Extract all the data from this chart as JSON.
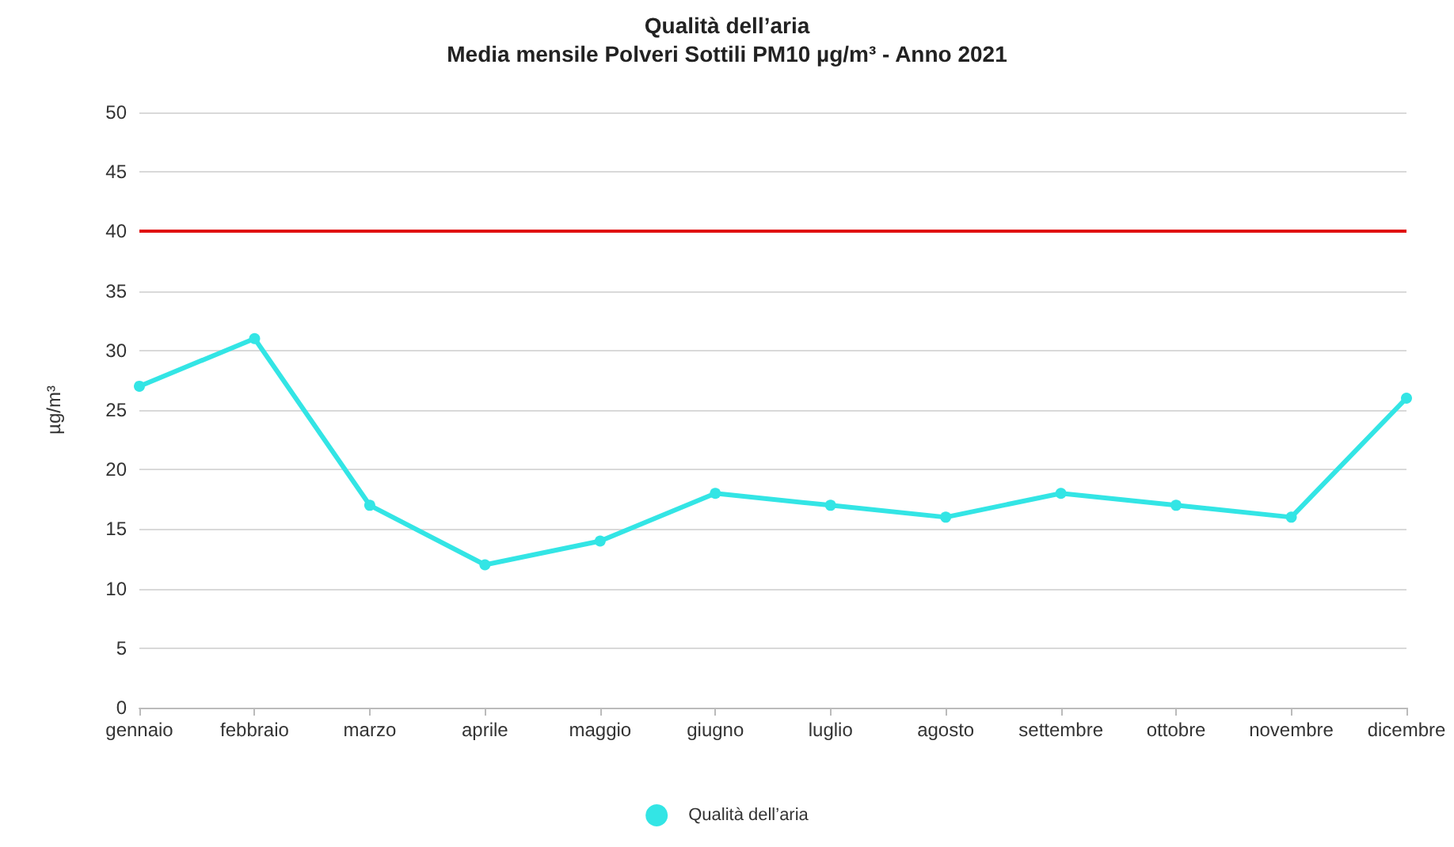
{
  "chart_data": {
    "type": "line",
    "title": "Qualità dell’aria",
    "subtitle": "Media mensile Polveri Sottili PM10 µg/m³ - Anno 2021",
    "ylabel": "µg/m³",
    "categories": [
      "gennaio",
      "febbraio",
      "marzo",
      "aprile",
      "maggio",
      "giugno",
      "luglio",
      "agosto",
      "settembre",
      "ottobre",
      "novembre",
      "dicembre"
    ],
    "series": [
      {
        "name": "Qualità dell’aria",
        "color": "#33e5e5",
        "values": [
          27,
          31,
          17,
          12,
          14,
          18,
          17,
          16,
          18,
          17,
          16,
          26
        ]
      }
    ],
    "ylim": [
      0,
      50
    ],
    "yticks": [
      0,
      5,
      10,
      15,
      20,
      25,
      30,
      35,
      40,
      45,
      50
    ],
    "ref_lines": [
      {
        "axis": "y",
        "value": 40,
        "color": "#e01010"
      }
    ],
    "grid": "y",
    "legend": "bottom",
    "marker": "circle",
    "line_style": "solid"
  }
}
